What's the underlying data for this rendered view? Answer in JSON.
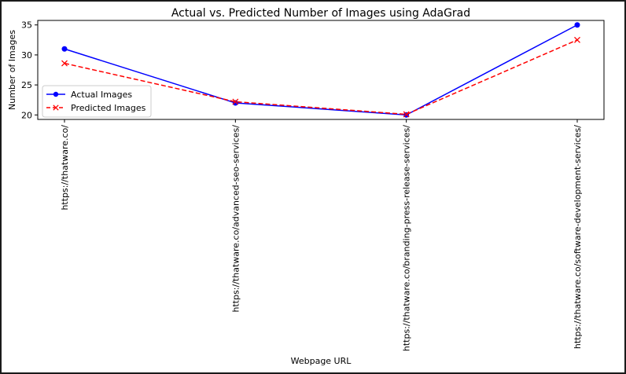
{
  "chart_data": {
    "type": "line",
    "title": "Actual vs. Predicted Number of Images using AdaGrad",
    "xlabel": "Webpage URL",
    "ylabel": "Number of Images",
    "categories": [
      "https://thatware.co/",
      "https://thatware.co/advanced-seo-services/",
      "https://thatware.co/branding-press-release-services/",
      "https://thatware.co/software-development-services/"
    ],
    "series": [
      {
        "name": "Actual Images",
        "values": [
          31,
          22,
          20,
          35
        ],
        "color": "#0000ff",
        "linestyle": "solid",
        "marker": "circle"
      },
      {
        "name": "Predicted Images",
        "values": [
          28.6,
          22.2,
          20.1,
          32.5
        ],
        "color": "#ff0000",
        "linestyle": "dashed",
        "marker": "x"
      }
    ],
    "yticks": [
      20,
      25,
      30,
      35
    ],
    "ylim": [
      19.25,
      35.75
    ],
    "grid": false,
    "legend": "middle-left"
  }
}
